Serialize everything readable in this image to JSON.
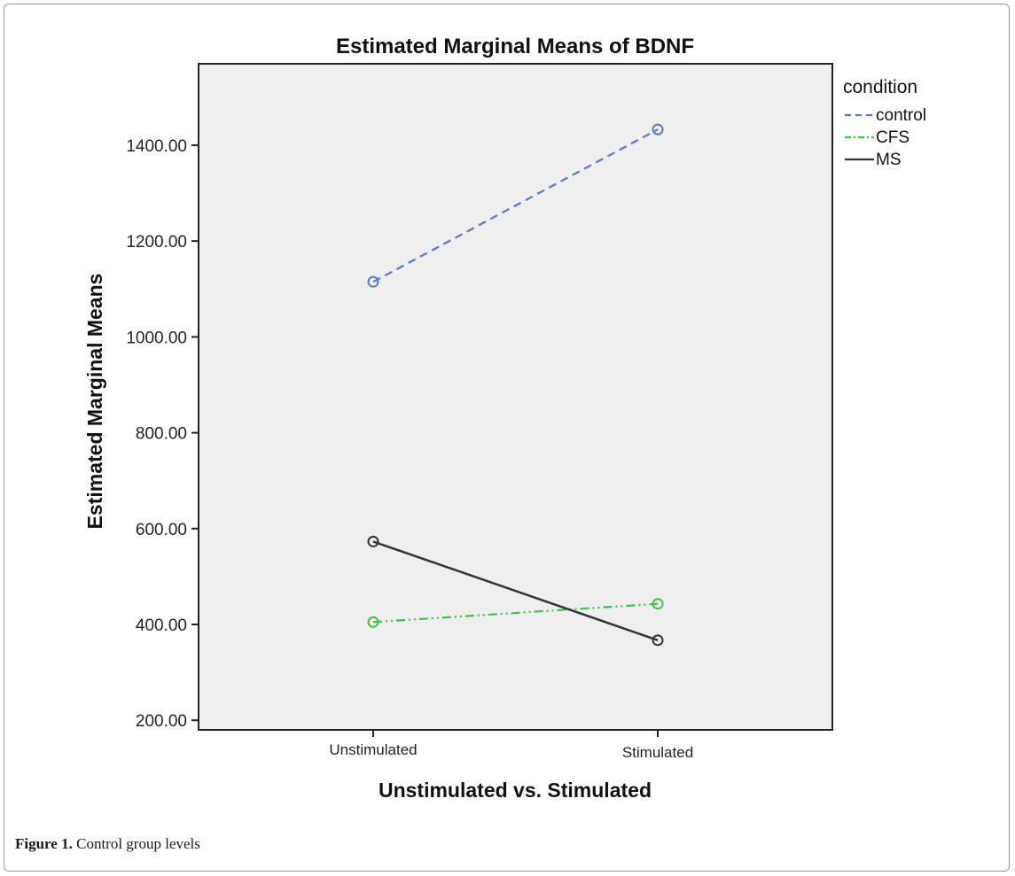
{
  "chart_data": {
    "type": "line",
    "title": "Estimated Marginal Means of BDNF",
    "xlabel": "Unstimulated vs. Stimulated",
    "ylabel": "Estimated Marginal Means",
    "categories": [
      "Unstimulated",
      "Stimulated"
    ],
    "yticks": [
      "200.00",
      "400.00",
      "600.00",
      "800.00",
      "1000.00",
      "1200.00",
      "1400.00"
    ],
    "ylim": [
      180,
      1570
    ],
    "grid": false,
    "legend": {
      "title": "condition",
      "position": "outside-right"
    },
    "series": [
      {
        "name": "control",
        "values": [
          1115,
          1433
        ],
        "color": "#5b77c4",
        "dash": "dashed"
      },
      {
        "name": "CFS",
        "values": [
          405,
          443
        ],
        "color": "#3fc04a",
        "dash": "dash-dot-dot"
      },
      {
        "name": "MS",
        "values": [
          573,
          367
        ],
        "color": "#333333",
        "dash": "solid"
      }
    ],
    "background_color": "#efefef"
  },
  "caption": {
    "label": "Figure 1.",
    "text": "Control group levels"
  }
}
